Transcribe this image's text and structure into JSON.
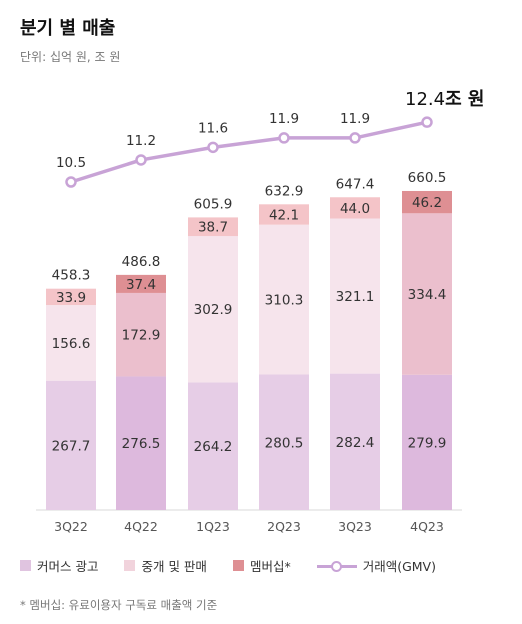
{
  "header": {
    "title": "분기 별 매출",
    "subtitle": "단위: 십억 원, 조 원"
  },
  "footnote": "* 멤버십: 유료이용자 구독료 매출액 기준",
  "colors": {
    "commerce": "#e6cde6",
    "commerce_highlight": "#ddb9dd",
    "brokerage": "#f6e4ec",
    "brokerage_highlight": "#ebbfcd",
    "membership": "#f4c4c8",
    "membership_highlight": "#de8f93",
    "gmv_line": "#c8a3d6"
  },
  "chart_data": {
    "type": "bar",
    "stacked": true,
    "categories": [
      "3Q22",
      "4Q22",
      "1Q23",
      "2Q23",
      "3Q23",
      "4Q23"
    ],
    "highlight_categories": [
      "4Q22",
      "4Q23"
    ],
    "series": [
      {
        "name": "커머스 광고",
        "values": [
          267.7,
          276.5,
          264.2,
          280.5,
          282.4,
          279.9
        ]
      },
      {
        "name": "중개 및 판매",
        "values": [
          156.6,
          172.9,
          302.9,
          310.3,
          321.1,
          334.4
        ]
      },
      {
        "name": "멤버십*",
        "values": [
          33.9,
          37.4,
          38.7,
          42.1,
          44.0,
          46.2
        ]
      }
    ],
    "totals": [
      458.3,
      486.8,
      605.9,
      632.9,
      647.4,
      660.5
    ],
    "line_series": {
      "name": "거래액(GMV)",
      "values": [
        10.5,
        11.2,
        11.6,
        11.9,
        11.9,
        12.4
      ],
      "last_label": "12.4",
      "last_label_unit": "조 원"
    },
    "ylim": [
      0,
      700
    ]
  }
}
